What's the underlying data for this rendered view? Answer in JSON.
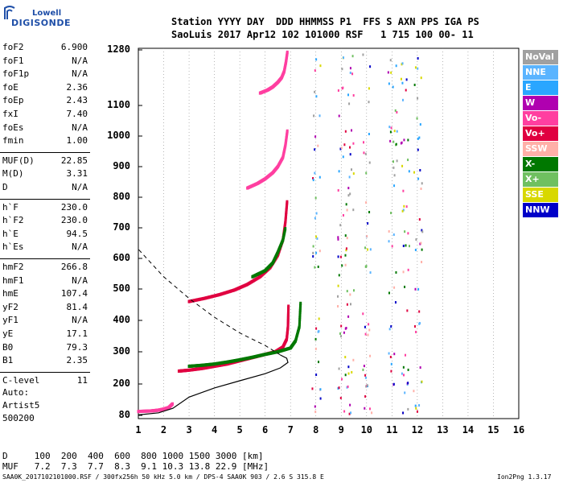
{
  "logo": {
    "line1": "Lowell",
    "line2": "DIGISONDE"
  },
  "header": {
    "row1": "Station YYYY DAY  DDD HHMMSS P1  FFS S AXN PPS IGA PS",
    "row2": "SaoLuis 2017 Apr12 102 101000 RSF   1 715 100 00- 11"
  },
  "params_group1": [
    {
      "k": "foF2",
      "v": "6.900"
    },
    {
      "k": "foF1",
      "v": "N/A"
    },
    {
      "k": "foF1p",
      "v": "N/A"
    },
    {
      "k": "foE",
      "v": "2.36"
    },
    {
      "k": "foEp",
      "v": "2.43"
    },
    {
      "k": "fxI",
      "v": "7.40"
    },
    {
      "k": "foEs",
      "v": "N/A"
    },
    {
      "k": "fmin",
      "v": "1.00"
    }
  ],
  "params_group2": [
    {
      "k": "MUF(D)",
      "v": "22.85"
    },
    {
      "k": "M(D)",
      "v": "3.31"
    },
    {
      "k": "D",
      "v": "N/A"
    }
  ],
  "params_group3": [
    {
      "k": "h`F",
      "v": "230.0"
    },
    {
      "k": "h`F2",
      "v": "230.0"
    },
    {
      "k": "h`E",
      "v": "94.5"
    },
    {
      "k": "h`Es",
      "v": "N/A"
    }
  ],
  "params_group4": [
    {
      "k": "hmF2",
      "v": "266.8"
    },
    {
      "k": "hmF1",
      "v": "N/A"
    },
    {
      "k": "hmE",
      "v": "107.4"
    },
    {
      "k": "yF2",
      "v": "81.4"
    },
    {
      "k": "yF1",
      "v": "N/A"
    },
    {
      "k": "yE",
      "v": "17.1"
    },
    {
      "k": "B0",
      "v": "79.3"
    },
    {
      "k": "B1",
      "v": "2.35"
    }
  ],
  "params_group5": [
    {
      "k": "C-level",
      "v": "11"
    }
  ],
  "auto": {
    "line1": "Auto:",
    "line2": "Artist5",
    "line3": "500200"
  },
  "legend": [
    {
      "label": "NoVal",
      "color": "#a0a0a0"
    },
    {
      "label": "NNE",
      "color": "#5ab4ff"
    },
    {
      "label": "E",
      "color": "#2aa6ff"
    },
    {
      "label": "W",
      "color": "#b000b0"
    },
    {
      "label": "Vo-",
      "color": "#ff3fa0"
    },
    {
      "label": "Vo+",
      "color": "#e00040"
    },
    {
      "label": "SSW",
      "color": "#ffb0a8"
    },
    {
      "label": "X-",
      "color": "#007800"
    },
    {
      "label": "X+",
      "color": "#6fc060"
    },
    {
      "label": "SSE",
      "color": "#d8d800"
    },
    {
      "label": "NNW",
      "color": "#0000c8"
    }
  ],
  "muf_table": {
    "line1": "D     100  200  400  600  800 1000 1500 3000 [km]",
    "line2": "MUF   7.2  7.3  7.7  8.3  9.1 10.3 13.8 22.9 [MHz]"
  },
  "footer": {
    "left": "SAA0K_2017102101000.RSF / 300fx256h 50 kHz 5.0 km / DPS-4 SAA0K 903 / 2.6 S 315.8 E",
    "right": "Ion2Png 1.3.17"
  },
  "chart_data": {
    "type": "scatter",
    "x_unit": "MHz",
    "y_unit": "km",
    "xlim": [
      1,
      16
    ],
    "ylim": [
      80,
      1280
    ],
    "x_ticks": [
      "1",
      "2",
      "3",
      "4",
      "5",
      "6",
      "7",
      "8",
      "9",
      "10",
      "11",
      "12",
      "13",
      "14",
      "15",
      "16"
    ],
    "y_ticks": [
      "80",
      "200",
      "300",
      "400",
      "500",
      "600",
      "700",
      "800",
      "900",
      "1000",
      "1100",
      "1280"
    ],
    "grid": "vertical dotted at integer MHz",
    "traces": [
      {
        "name": "O-trace F2",
        "color": "#e00040",
        "x": [
          2.6,
          3.0,
          3.5,
          4.0,
          4.5,
          5.0,
          5.5,
          6.0,
          6.4,
          6.7,
          6.85,
          6.9,
          6.92
        ],
        "y": [
          240,
          243,
          248,
          255,
          262,
          272,
          282,
          292,
          300,
          315,
          340,
          380,
          450
        ]
      },
      {
        "name": "X-trace F2",
        "color": "#007800",
        "x": [
          3.0,
          3.5,
          4.0,
          4.5,
          5.0,
          5.5,
          6.0,
          6.5,
          7.0,
          7.2,
          7.35,
          7.4
        ],
        "y": [
          255,
          258,
          262,
          268,
          275,
          283,
          292,
          300,
          312,
          335,
          380,
          460
        ]
      },
      {
        "name": "2nd hop O",
        "color": "#e00040",
        "x": [
          3.0,
          3.6,
          4.2,
          4.8,
          5.3,
          5.8,
          6.2,
          6.5,
          6.7,
          6.8,
          6.87
        ],
        "y": [
          460,
          470,
          482,
          497,
          515,
          540,
          570,
          610,
          660,
          720,
          790
        ]
      },
      {
        "name": "2nd hop X",
        "color": "#007800",
        "x": [
          5.5,
          6.0,
          6.3,
          6.5,
          6.7,
          6.8
        ],
        "y": [
          540,
          560,
          585,
          620,
          660,
          700
        ]
      },
      {
        "name": "3rd hop O",
        "color": "#ff3fa0",
        "x": [
          5.3,
          5.7,
          6.0,
          6.3,
          6.5,
          6.7,
          6.8,
          6.88
        ],
        "y": [
          830,
          845,
          860,
          880,
          900,
          930,
          970,
          1020
        ]
      },
      {
        "name": "4th hop O",
        "color": "#ff3fa0",
        "x": [
          5.8,
          6.1,
          6.3,
          6.5,
          6.65,
          6.75,
          6.82,
          6.88
        ],
        "y": [
          1140,
          1150,
          1160,
          1175,
          1190,
          1210,
          1240,
          1275
        ]
      },
      {
        "name": "E layer",
        "color": "#ff3fa0",
        "x": [
          1.0,
          1.5,
          1.8,
          2.0,
          2.2,
          2.36
        ],
        "y": [
          95,
          97,
          100,
          104,
          110,
          125
        ]
      }
    ],
    "profile": {
      "name": "electron density profile",
      "x": [
        1.0,
        1.8,
        2.36,
        3.0,
        4.0,
        5.0,
        6.0,
        6.6,
        6.9,
        6.85,
        6.6
      ],
      "y": [
        82,
        90,
        107,
        150,
        185,
        210,
        232,
        250,
        266.8,
        280,
        290
      ]
    },
    "topside": {
      "name": "topside extrapolation",
      "x": [
        6.6,
        6.0,
        5.0,
        4.0,
        3.0,
        2.0,
        1.0
      ],
      "y": [
        290,
        320,
        360,
        410,
        470,
        540,
        630
      ]
    }
  }
}
